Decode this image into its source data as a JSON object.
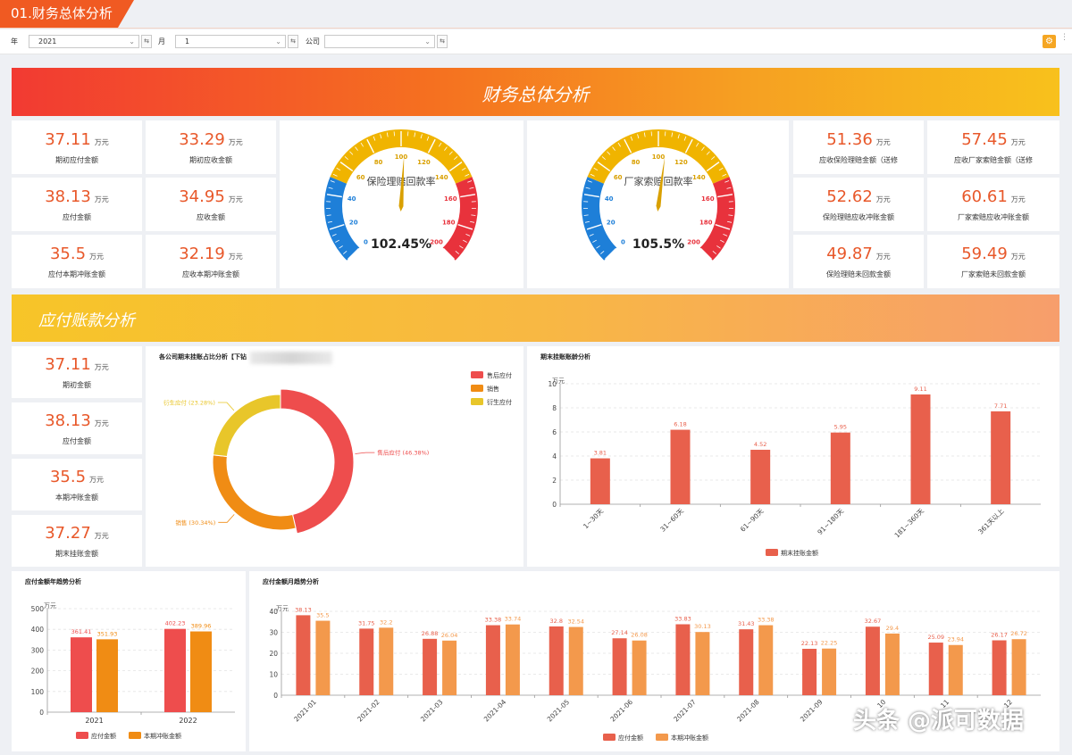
{
  "header": {
    "tab_title": "01.财务总体分析"
  },
  "filters": {
    "year_label": "年",
    "year_value": "2021",
    "month_label": "月",
    "month_value": "1",
    "company_label": "公司",
    "company_value": ""
  },
  "section1": {
    "title": "财务总体分析"
  },
  "section2": {
    "title": "应付账款分析"
  },
  "kpi_left": [
    {
      "value": "37.11",
      "unit": "万元",
      "label": "期初应付金额"
    },
    {
      "value": "33.29",
      "unit": "万元",
      "label": "期初应收金额"
    },
    {
      "value": "38.13",
      "unit": "万元",
      "label": "应付金额"
    },
    {
      "value": "34.95",
      "unit": "万元",
      "label": "应收金额"
    },
    {
      "value": "35.5",
      "unit": "万元",
      "label": "应付本期冲账金额"
    },
    {
      "value": "32.19",
      "unit": "万元",
      "label": "应收本期冲账金额"
    }
  ],
  "kpi_right": [
    {
      "value": "51.36",
      "unit": "万元",
      "label": "应收保险理赔金额（送修"
    },
    {
      "value": "57.45",
      "unit": "万元",
      "label": "应收厂家索赔金额（送修"
    },
    {
      "value": "52.62",
      "unit": "万元",
      "label": "保险理赔应收冲账金额"
    },
    {
      "value": "60.61",
      "unit": "万元",
      "label": "厂家索赔应收冲账金额"
    },
    {
      "value": "49.87",
      "unit": "万元",
      "label": "保险理赔未回款金额"
    },
    {
      "value": "59.49",
      "unit": "万元",
      "label": "厂家索赔未回款金额"
    }
  ],
  "gauges": [
    {
      "title": "保险理赔回款率",
      "value": 102.45,
      "display": "102.45%",
      "min": 0,
      "max": 200,
      "ticks": [
        "0",
        "20",
        "40",
        "60",
        "80",
        "100",
        "120",
        "140",
        "160",
        "180",
        "200"
      ]
    },
    {
      "title": "厂家索赔回款率",
      "value": 105.5,
      "display": "105.5%",
      "min": 0,
      "max": 200,
      "ticks": [
        "0",
        "20",
        "40",
        "60",
        "80",
        "100",
        "120",
        "140",
        "160",
        "180",
        "200"
      ]
    }
  ],
  "kpi_payable": [
    {
      "value": "37.11",
      "unit": "万元",
      "label": "期初金额"
    },
    {
      "value": "38.13",
      "unit": "万元",
      "label": "应付金额"
    },
    {
      "value": "35.5",
      "unit": "万元",
      "label": "本期冲账金额"
    },
    {
      "value": "37.27",
      "unit": "万元",
      "label": "期末挂账金额"
    }
  ],
  "colors": {
    "red": "#ee4d4d",
    "orange": "#f08c14",
    "yellow": "#e8c62a",
    "bar": "#e8604c",
    "bar2": "#f3994c",
    "accent": "#e8582a"
  },
  "chart_data": [
    {
      "type": "pie",
      "title": "各公司期末挂账占比分析【下钻",
      "series": [
        {
          "name": "售后应付",
          "value": 46.38,
          "label": "售后应付 (46.38%)"
        },
        {
          "name": "销售",
          "value": 30.34,
          "label": "销售 (30.34%)"
        },
        {
          "name": "衍生应付",
          "value": 23.28,
          "label": "衍生应付 (23.28%)"
        }
      ],
      "legend": "top-right"
    },
    {
      "type": "bar",
      "title": "期末挂账账龄分析",
      "ylabel": "万元",
      "categories": [
        "1~30天",
        "31~60天",
        "61~90天",
        "91~180天",
        "181~360天",
        "361天以上"
      ],
      "series": [
        {
          "name": "期末挂账金额",
          "values": [
            3.81,
            6.18,
            4.52,
            5.95,
            9.11,
            7.71
          ]
        }
      ],
      "ylim": [
        0,
        10
      ],
      "yticks": [
        "0",
        "2",
        "4",
        "6",
        "8",
        "10"
      ],
      "legend": "bottom"
    },
    {
      "type": "bar",
      "title": "应付金额年趋势分析",
      "ylabel": "万元",
      "categories": [
        "2021",
        "2022"
      ],
      "series": [
        {
          "name": "应付金额",
          "values": [
            361.41,
            402.23
          ]
        },
        {
          "name": "本期冲账金额",
          "values": [
            351.93,
            389.96
          ]
        }
      ],
      "ylim": [
        0,
        500
      ],
      "yticks": [
        "0",
        "100",
        "200",
        "300",
        "400",
        "500"
      ],
      "legend": "bottom"
    },
    {
      "type": "bar",
      "title": "应付金额月趋势分析",
      "ylabel": "万元",
      "categories": [
        "2021-01",
        "2021-02",
        "2021-03",
        "2021-04",
        "2021-05",
        "2021-06",
        "2021-07",
        "2021-08",
        "2021-09",
        "2021-10",
        "2021-11",
        "2021-12"
      ],
      "category_labels": [
        "2021-01",
        "2021-02",
        "2021-03",
        "2021-04",
        "2021-05",
        "2021-06",
        "2021-07",
        "2021-08",
        "2021-09",
        "10",
        "11",
        "12"
      ],
      "series": [
        {
          "name": "应付金额",
          "values": [
            38.13,
            31.75,
            26.88,
            33.38,
            32.8,
            27.14,
            33.83,
            31.43,
            22.13,
            32.67,
            25.09,
            26.17
          ]
        },
        {
          "name": "本期冲账金额",
          "values": [
            35.5,
            32.2,
            26.04,
            33.74,
            32.54,
            26.08,
            30.13,
            33.38,
            22.25,
            29.4,
            23.94,
            26.72
          ]
        }
      ],
      "ylim": [
        0,
        40
      ],
      "yticks": [
        "0",
        "10",
        "20",
        "30",
        "40"
      ],
      "legend": "bottom"
    }
  ],
  "watermark": "头条 @派可数据"
}
